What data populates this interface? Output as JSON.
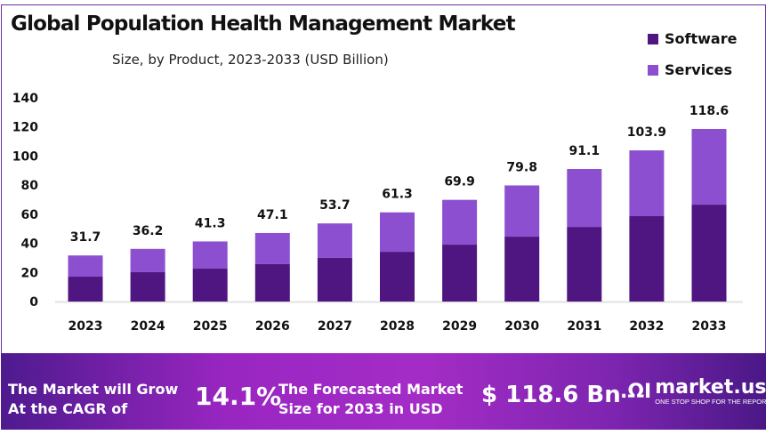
{
  "chart_data": {
    "type": "bar",
    "stacked": true,
    "title": "Global Population Health Management Market",
    "subtitle": "Size, by Product, 2023-2033 (USD Billion)",
    "categories": [
      "2023",
      "2024",
      "2025",
      "2026",
      "2027",
      "2028",
      "2029",
      "2030",
      "2031",
      "2032",
      "2033"
    ],
    "series": [
      {
        "name": "Software",
        "color": "#4f1580",
        "values": [
          17.1,
          20.2,
          22.6,
          25.7,
          30.0,
          34.2,
          39.1,
          44.6,
          51.3,
          58.7,
          66.6
        ]
      },
      {
        "name": "Services",
        "color": "#8b4fcf",
        "values": [
          14.6,
          16.0,
          18.7,
          21.4,
          23.7,
          27.1,
          30.8,
          35.2,
          39.8,
          45.2,
          52.0
        ]
      }
    ],
    "totals": [
      "31.7",
      "36.2",
      "41.3",
      "47.1",
      "53.7",
      "61.3",
      "69.9",
      "79.8",
      "91.1",
      "103.9",
      "118.6"
    ],
    "ylim": [
      0,
      140
    ],
    "yticks": [
      "0",
      "20",
      "40",
      "60",
      "80",
      "100",
      "120",
      "140"
    ],
    "grid": false,
    "legend": "top-right"
  },
  "banner": {
    "cagr_label_1": "The Market will Grow",
    "cagr_label_2": "At the CAGR of",
    "cagr_value": "14.1%",
    "forecast_label_1": "The Forecasted Market",
    "forecast_label_2": "Size for 2033 in USD",
    "forecast_value": "$ 118.6 Bn",
    "logo_name": "market.us",
    "logo_tagline": "ONE STOP SHOP FOR THE REPORTS"
  }
}
